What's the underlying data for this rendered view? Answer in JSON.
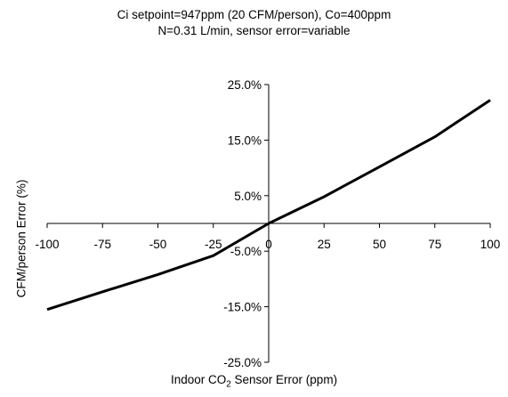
{
  "chart_data": {
    "type": "line",
    "title": "Ci setpoint=947ppm (20 CFM/person), Co=400ppm",
    "subtitle": "N=0.31 L/min, sensor error=variable",
    "xlabel_prefix": "Indoor CO",
    "xlabel_sub": "2",
    "xlabel_suffix": " Sensor Error (ppm)",
    "ylabel": "CFM/person Error (%)",
    "xlim": [
      -100,
      100
    ],
    "ylim": [
      -25,
      25
    ],
    "x_ticks": [
      -100,
      -75,
      -50,
      -25,
      0,
      25,
      50,
      75,
      100
    ],
    "x_tick_labels": [
      "-100",
      "-75",
      "-50",
      "-25",
      "0",
      "25",
      "50",
      "75",
      "100"
    ],
    "y_ticks": [
      25,
      15,
      5,
      -5,
      -15,
      -25
    ],
    "y_tick_labels": [
      "25.0%",
      "15.0%",
      "5.0%",
      "-5.0%",
      "-15.0%",
      "-25.0%"
    ],
    "grid": false,
    "series": [
      {
        "color": "#000000",
        "x": [
          -100,
          -75,
          -50,
          -25,
          0,
          25,
          50,
          75,
          100
        ],
        "y": [
          -15.5,
          -12.3,
          -9.2,
          -5.8,
          0,
          4.8,
          10.2,
          15.6,
          22.2
        ]
      }
    ]
  }
}
